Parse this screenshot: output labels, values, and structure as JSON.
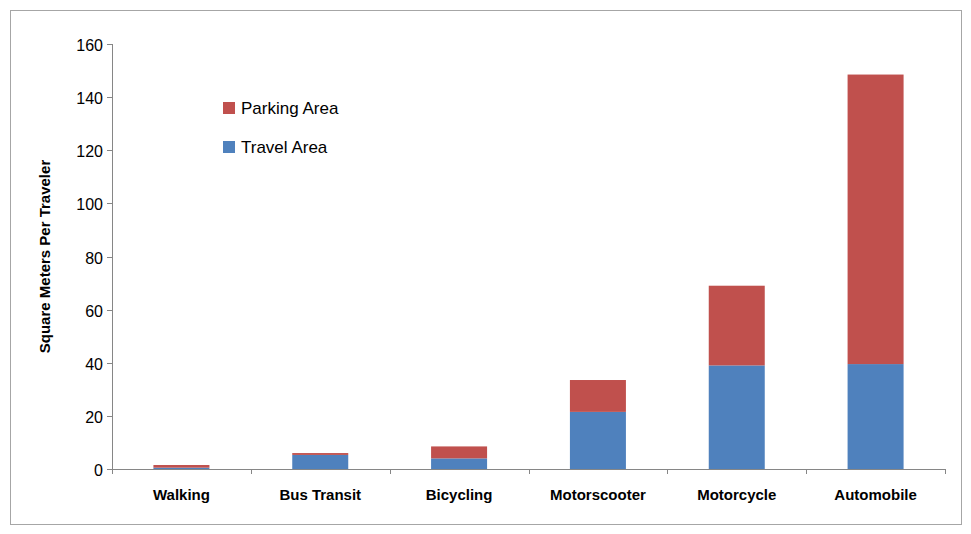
{
  "chart_data": {
    "type": "bar",
    "stacked": true,
    "y_label": "Square Meters Per Traveler",
    "categories": [
      "Walking",
      "Bus Transit",
      "Bicycling",
      "Motorscooter",
      "Motorcycle",
      "Automobile"
    ],
    "series": [
      {
        "name": "Travel Area",
        "color": "#4f81bd",
        "values": [
          0.5,
          5.3,
          4,
          21.5,
          39,
          39.5
        ]
      },
      {
        "name": "Parking Area",
        "color": "#c0504d",
        "values": [
          1,
          0.7,
          4.5,
          12,
          30,
          109
        ]
      }
    ],
    "ylim": [
      0,
      160
    ],
    "yticks": [
      0,
      20,
      40,
      60,
      80,
      100,
      120,
      140,
      160
    ],
    "grid": false,
    "legend": "top-left"
  }
}
